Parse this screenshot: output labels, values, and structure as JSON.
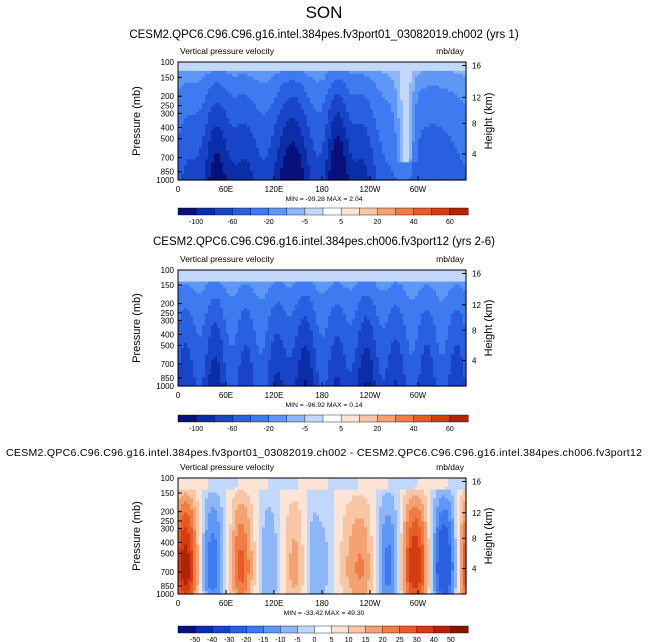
{
  "page_title": "SON",
  "colors": {
    "neg": [
      "#08107a",
      "#0b2ea8",
      "#1845c8",
      "#2860e0",
      "#3f7bf0",
      "#5f97f6",
      "#8db6f8",
      "#c2d8fb"
    ],
    "pos": [
      "#fbe4d6",
      "#f8c6a4",
      "#f4a271",
      "#ef7d44",
      "#e85b25",
      "#d53c10",
      "#b42308",
      "#8a1403"
    ],
    "axis": "#000000"
  },
  "chart_data": [
    {
      "type": "heatmap",
      "title": "CESM2.QPC6.C96.C96.g16.intel.384pes.fv3port01_03082019.ch002 (yrs 1)",
      "variable": "Vertical pressure velocity",
      "units": "mb/day",
      "ylabel": "Pressure (mb)",
      "y2label": "Height (km)",
      "xticks": [
        "0",
        "60E",
        "120E",
        "180",
        "120W",
        "60W"
      ],
      "yticks": [
        "100",
        "150",
        "200",
        "250",
        "300",
        "400",
        "500",
        "700",
        "850",
        "1000"
      ],
      "y2ticks": [
        "4",
        "8",
        "12",
        "16"
      ],
      "xlim": [
        0,
        360
      ],
      "ylim": [
        1000,
        100
      ],
      "minmax": "MIN = -99.28   MAX =   2.04",
      "colorbar_labels": [
        "-100",
        "-60",
        "-20",
        "-5",
        "5",
        "20",
        "40",
        "60"
      ],
      "colorbar_min": -100,
      "colorbar_max": 60,
      "fields": {
        "min": -99.28,
        "max": 2.04
      }
    },
    {
      "type": "heatmap",
      "title": "CESM2.QPC6.C96.C96.g16.intel.384pes.ch006.fv3port12 (yrs 2-6)",
      "variable": "Vertical pressure velocity",
      "units": "mb/day",
      "ylabel": "Pressure (mb)",
      "y2label": "Height (km)",
      "xticks": [
        "0",
        "60E",
        "120E",
        "180",
        "120W",
        "60W"
      ],
      "yticks": [
        "100",
        "150",
        "200",
        "250",
        "300",
        "400",
        "500",
        "700",
        "850",
        "1000"
      ],
      "y2ticks": [
        "4",
        "8",
        "12",
        "16"
      ],
      "xlim": [
        0,
        360
      ],
      "ylim": [
        1000,
        100
      ],
      "minmax": "MIN = -96.92   MAX =   0.14",
      "colorbar_labels": [
        "-100",
        "-60",
        "-20",
        "-5",
        "5",
        "20",
        "40",
        "60"
      ],
      "colorbar_min": -100,
      "colorbar_max": 60,
      "fields": {
        "min": -96.92,
        "max": 0.14
      }
    },
    {
      "type": "heatmap",
      "title": "CESM2.QPC6.C96.C96.g16.intel.384pes.fv3port01_03082019.ch002 - CESM2.QPC6.C96.C96.g16.intel.384pes.ch006.fv3port12",
      "variable": "Vertical pressure velocity",
      "units": "mb/day",
      "ylabel": "Pressure (mb)",
      "y2label": "Height (km)",
      "xticks": [
        "0",
        "60E",
        "120E",
        "180",
        "120W",
        "60W"
      ],
      "yticks": [
        "100",
        "150",
        "200",
        "250",
        "300",
        "400",
        "500",
        "700",
        "850",
        "1000"
      ],
      "y2ticks": [
        "4",
        "8",
        "12",
        "16"
      ],
      "xlim": [
        0,
        360
      ],
      "ylim": [
        1000,
        100
      ],
      "minmax": "MIN = -33.42   MAX =  49.30",
      "colorbar_labels": [
        "-50",
        "-40",
        "-30",
        "-20",
        "-15",
        "-10",
        "-5",
        "0",
        "5",
        "10",
        "15",
        "20",
        "25",
        "30",
        "40",
        "50"
      ],
      "colorbar_min": -55,
      "colorbar_max": 55,
      "fields": {
        "min": -33.42,
        "max": 49.3
      }
    }
  ]
}
